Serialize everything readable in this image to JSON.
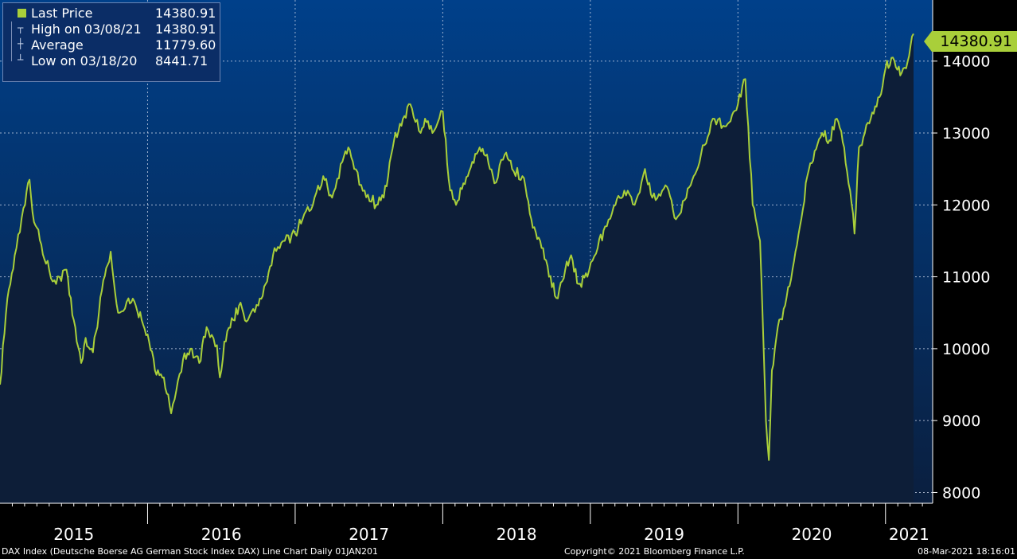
{
  "legend": {
    "last_label": "Last Price",
    "last_value": "14380.91",
    "high_label": "High on 03/08/21",
    "high_value": "14380.91",
    "avg_label": "Average",
    "avg_value": "11779.60",
    "low_label": "Low on 03/18/20",
    "low_value": "8441.71"
  },
  "last_price_tag": "14380.91",
  "footer": {
    "left": "DAX Index (Deutsche Boerse AG German Stock Index DAX) Line Chart  Daily 01JAN201",
    "center": "Copyright© 2021 Bloomberg Finance L.P.",
    "right": "08-Mar-2021 18:16:01"
  },
  "colors": {
    "line": "#a9cf3a",
    "bg_top": "#00408a",
    "bg_bottom": "#0a1f3f",
    "area": "#0d1e38",
    "grid": "#c8d2e6"
  },
  "chart_data": {
    "type": "area",
    "title": "",
    "xlabel": "",
    "ylabel": "",
    "ylim": [
      7850,
      14850
    ],
    "yticks": [
      8000,
      9000,
      10000,
      11000,
      12000,
      13000,
      14000
    ],
    "x_range": [
      2015.0,
      2021.19
    ],
    "xlabels": [
      "2015",
      "2016",
      "2017",
      "2018",
      "2019",
      "2020",
      "2021"
    ],
    "grid": true,
    "legend_position": "top-left",
    "series": [
      {
        "name": "Last Price",
        "x": [
          2015.0,
          2015.05,
          2015.1,
          2015.17,
          2015.2,
          2015.22,
          2015.28,
          2015.3,
          2015.38,
          2015.45,
          2015.5,
          2015.55,
          2015.58,
          2015.63,
          2015.67,
          2015.7,
          2015.75,
          2015.8,
          2015.87,
          2015.92,
          2015.96,
          2016.0,
          2016.05,
          2016.11,
          2016.16,
          2016.24,
          2016.29,
          2016.35,
          2016.4,
          2016.47,
          2016.49,
          2016.52,
          2016.58,
          2016.62,
          2016.68,
          2016.75,
          2016.8,
          2016.86,
          2016.93,
          2017.0,
          2017.05,
          2017.12,
          2017.19,
          2017.25,
          2017.32,
          2017.36,
          2017.4,
          2017.47,
          2017.55,
          2017.6,
          2017.63,
          2017.67,
          2017.72,
          2017.78,
          2017.85,
          2017.88,
          2017.93,
          2018.0,
          2018.05,
          2018.09,
          2018.14,
          2018.2,
          2018.25,
          2018.3,
          2018.35,
          2018.42,
          2018.47,
          2018.54,
          2018.6,
          2018.66,
          2018.72,
          2018.78,
          2018.83,
          2018.87,
          2018.92,
          2018.98,
          2019.05,
          2019.1,
          2019.17,
          2019.23,
          2019.3,
          2019.37,
          2019.42,
          2019.52,
          2019.58,
          2019.65,
          2019.7,
          2019.75,
          2019.83,
          2019.9,
          2019.96,
          2020.0,
          2020.05,
          2020.1,
          2020.15,
          2020.19,
          2020.21,
          2020.23,
          2020.27,
          2020.32,
          2020.37,
          2020.42,
          2020.47,
          2020.52,
          2020.57,
          2020.62,
          2020.67,
          2020.72,
          2020.76,
          2020.79,
          2020.82,
          2020.86,
          2020.9,
          2020.96,
          2021.0,
          2021.05,
          2021.1,
          2021.14,
          2021.19
        ],
        "values": [
          9500,
          10700,
          11300,
          12000,
          12350,
          11900,
          11450,
          11250,
          10900,
          11100,
          10400,
          9800,
          10150,
          9950,
          10500,
          10950,
          11350,
          10500,
          10700,
          10600,
          10400,
          10200,
          9700,
          9600,
          9100,
          9850,
          10000,
          9800,
          10300,
          10050,
          9600,
          10100,
          10400,
          10600,
          10400,
          10600,
          10900,
          11400,
          11500,
          11600,
          11800,
          12000,
          12400,
          12100,
          12600,
          12800,
          12500,
          12200,
          12000,
          12100,
          12400,
          12900,
          13100,
          13400,
          13000,
          13200,
          13000,
          13300,
          12200,
          12000,
          12300,
          12600,
          12800,
          12700,
          12300,
          12700,
          12500,
          12400,
          11800,
          11500,
          11000,
          10700,
          11100,
          11300,
          10900,
          11000,
          11400,
          11700,
          12000,
          12200,
          12000,
          12500,
          12100,
          12250,
          11800,
          12100,
          12400,
          12700,
          13200,
          13100,
          13250,
          13400,
          13750,
          12000,
          11500,
          9000,
          8450,
          9700,
          10300,
          10600,
          11100,
          11700,
          12400,
          12750,
          13000,
          12900,
          13200,
          12800,
          12200,
          11600,
          12800,
          13000,
          13200,
          13500,
          13900,
          14050,
          13800,
          13900,
          14380.91
        ]
      }
    ],
    "annotations": [
      {
        "label": "High on 03/08/21",
        "value": 14380.91
      },
      {
        "label": "Average",
        "value": 11779.6
      },
      {
        "label": "Low on 03/18/20",
        "value": 8441.71
      }
    ]
  }
}
